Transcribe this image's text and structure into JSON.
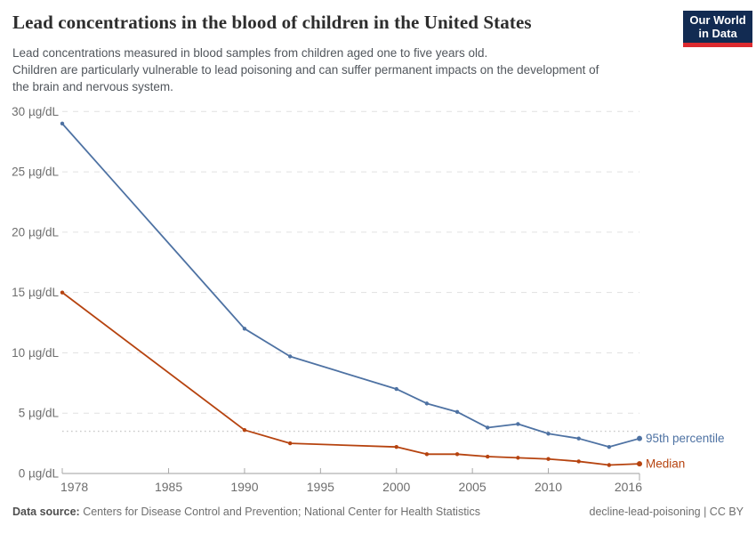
{
  "chart_data": {
    "type": "line",
    "title": "Lead concentrations in the blood of children in the United States",
    "subtitle_lines": [
      "Lead concentrations measured in blood samples from children aged one to five years old.",
      "Children are particularly vulnerable to lead poisoning and can suffer permanent impacts on the development of",
      "the brain and nervous system."
    ],
    "x": [
      1978,
      1990,
      1993,
      2000,
      2002,
      2004,
      2006,
      2008,
      2010,
      2012,
      2014,
      2016
    ],
    "series": [
      {
        "name": "95th percentile",
        "color": "#4e72a3",
        "values": [
          29,
          12,
          9.7,
          7,
          5.8,
          5.1,
          3.8,
          4.1,
          3.3,
          2.9,
          2.2,
          2.9
        ]
      },
      {
        "name": "Median",
        "color": "#b6430f",
        "values": [
          15,
          3.6,
          2.5,
          2.2,
          1.6,
          1.6,
          1.4,
          1.3,
          1.2,
          1,
          0.7,
          0.8
        ]
      }
    ],
    "xlabel": "",
    "ylabel": "",
    "unit": "µg/dL",
    "xlim": [
      1978,
      2016
    ],
    "ylim": [
      0,
      30
    ],
    "x_ticks": [
      1978,
      1985,
      1990,
      1995,
      2000,
      2005,
      2010,
      2016
    ],
    "y_ticks": [
      0,
      5,
      10,
      15,
      20,
      25,
      30
    ],
    "y_tick_suffix": " µg/dL",
    "reference_line": {
      "value": 3.5,
      "style": "dotted"
    },
    "grid": "horizontal-dashed",
    "legend_position": "line-end-labels"
  },
  "logo": {
    "line1": "Our World",
    "line2": "in Data"
  },
  "footer": {
    "source_label": "Data source:",
    "source_text": " Centers for Disease Control and Prevention; National Center for Health Statistics",
    "attribution": "decline-lead-poisoning | CC BY"
  },
  "colors": {
    "grid": "#e1e1e1",
    "axis": "#9c9c9c",
    "tick": "#a8a8a8",
    "tick_text": "#6d6d6d",
    "reference_line": "#c9c9c9",
    "title_text": "#2d2d2d",
    "subtitle_text": "#51565c",
    "logo_bg": "#122b52",
    "logo_accent": "#dc2a2f"
  }
}
